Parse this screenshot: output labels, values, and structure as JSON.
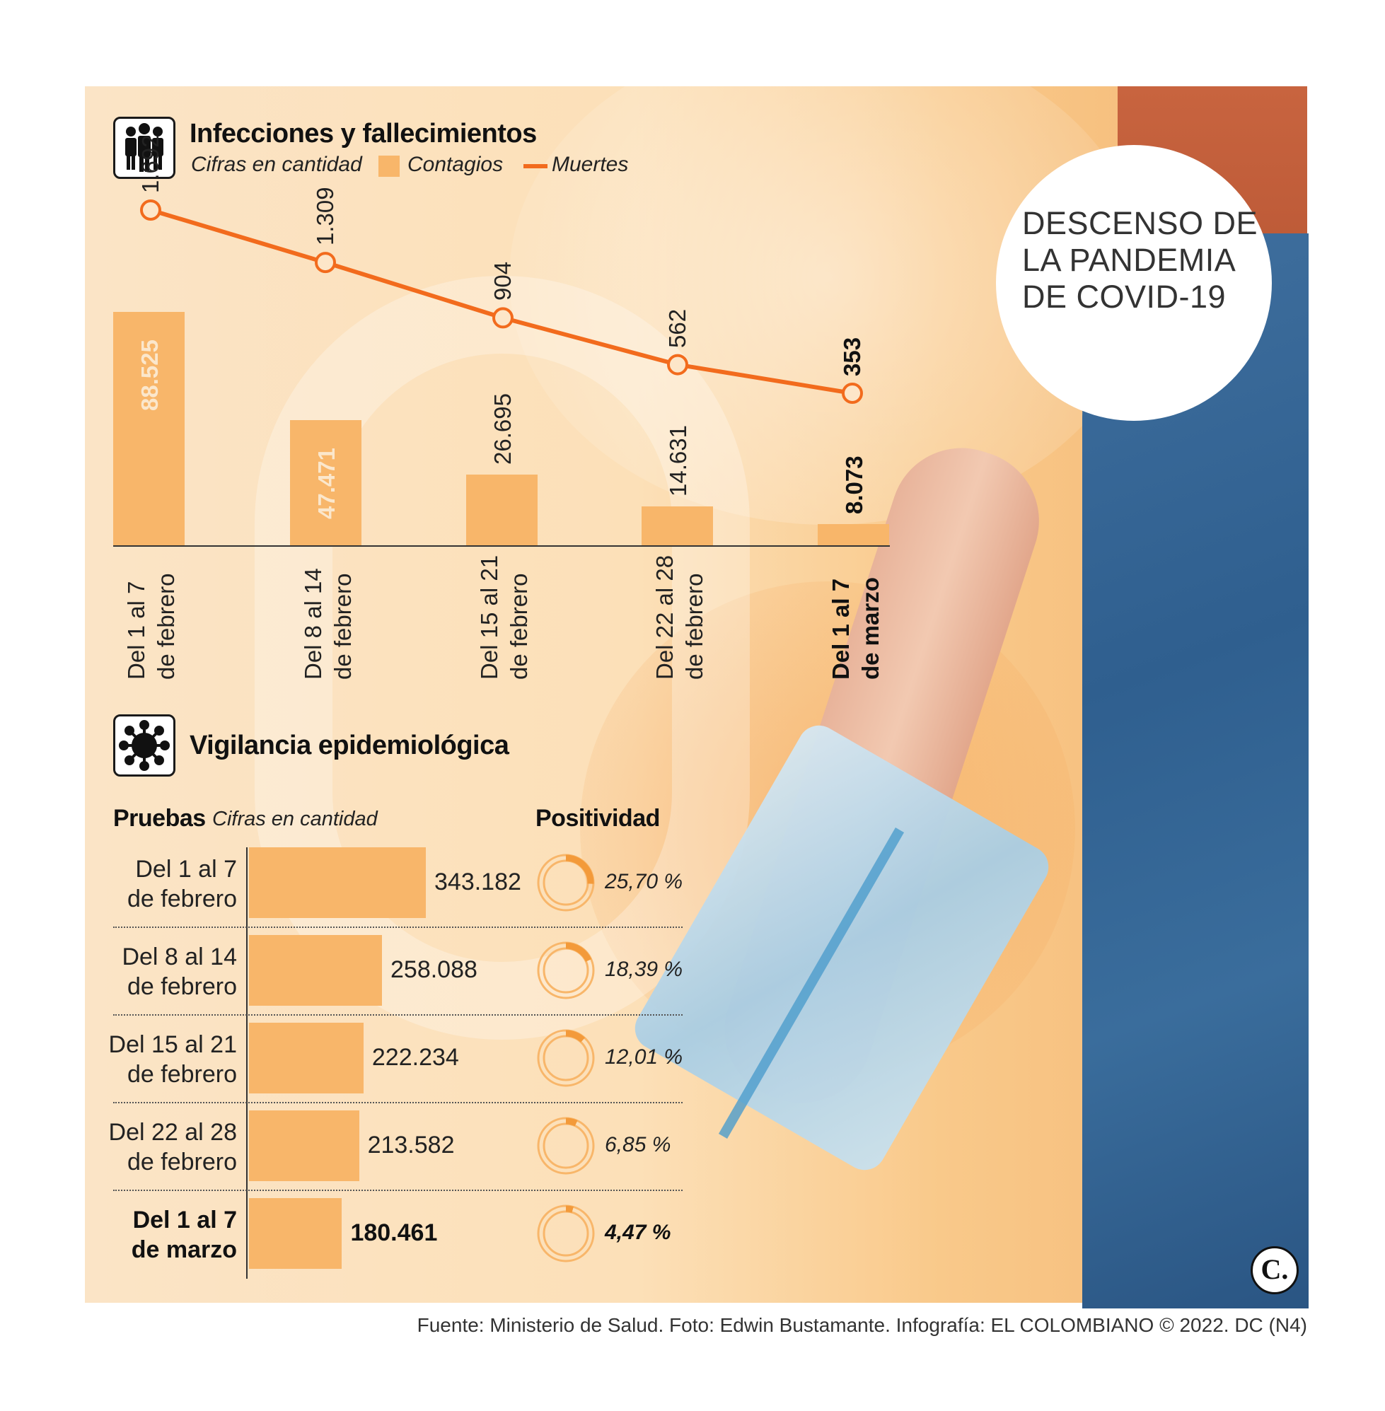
{
  "badge": "DESCENSO DE LA PANDEMIA DE COVID-19",
  "section1": {
    "title": "Infecciones y fallecimientos",
    "legend_units": "Cifras en cantidad",
    "legend_bar": "Contagios",
    "legend_line": "Muertes"
  },
  "section2": {
    "title": "Vigilancia epidemiológica",
    "tests_label": "Pruebas",
    "tests_units": "Cifras en cantidad",
    "positivity_label": "Positividad"
  },
  "chart_data": [
    {
      "type": "bar",
      "categories": [
        [
          "Del 1 al 7",
          "de febrero"
        ],
        [
          "Del 8 al 14",
          "de febrero"
        ],
        [
          "Del 15 al 21",
          "de febrero"
        ],
        [
          "Del 22 al 28",
          "de febrero"
        ],
        [
          "Del 1 al 7",
          "de marzo"
        ]
      ],
      "series": [
        {
          "name": "Contagios",
          "values": [
            88525,
            47471,
            26695,
            14631,
            8073
          ],
          "labels": [
            "88.525",
            "47.471",
            "26.695",
            "14.631",
            "8.073"
          ]
        },
        {
          "name": "Muertes",
          "type": "line",
          "values": [
            1692,
            1309,
            904,
            562,
            353
          ],
          "labels": [
            "1.692",
            "1.309",
            "904",
            "562",
            "353"
          ]
        }
      ],
      "legend": "top-left",
      "grid": false,
      "colors": {
        "bar": "#f8b66a",
        "line": "#f26b1d"
      }
    },
    {
      "type": "bar",
      "orientation": "horizontal",
      "categories": [
        [
          "Del 1 al 7",
          "de febrero"
        ],
        [
          "Del 8 al 14",
          "de febrero"
        ],
        [
          "Del 15 al 21",
          "de febrero"
        ],
        [
          "Del 22 al 28",
          "de febrero"
        ],
        [
          "Del 1 al 7",
          "de marzo"
        ]
      ],
      "series": [
        {
          "name": "Pruebas",
          "values": [
            343182,
            258088,
            222234,
            213582,
            180461
          ],
          "labels": [
            "343.182",
            "258.088",
            "222.234",
            "213.582",
            "180.461"
          ]
        }
      ],
      "colors": {
        "bar": "#f8b66a"
      }
    },
    {
      "type": "pie",
      "categories": [
        [
          "Del 1 al 7",
          "de febrero"
        ],
        [
          "Del 8 al 14",
          "de febrero"
        ],
        [
          "Del 15 al 21",
          "de febrero"
        ],
        [
          "Del 22 al 28",
          "de febrero"
        ],
        [
          "Del 1 al 7",
          "de marzo"
        ]
      ],
      "series": [
        {
          "name": "Positividad",
          "values": [
            25.7,
            18.39,
            12.01,
            6.85,
            4.47
          ],
          "labels": [
            "25,70 %",
            "18,39 %",
            "12,01 %",
            "6,85 %",
            "4,47 %"
          ]
        }
      ],
      "colors": {
        "ring": "#f8b66a",
        "fill": "#f39a3a"
      }
    }
  ],
  "footer": "Fuente: Ministerio de Salud. Foto: Edwin Bustamante. Infografía: EL COLOMBIANO © 2022. DC (N4)",
  "logo": "C."
}
